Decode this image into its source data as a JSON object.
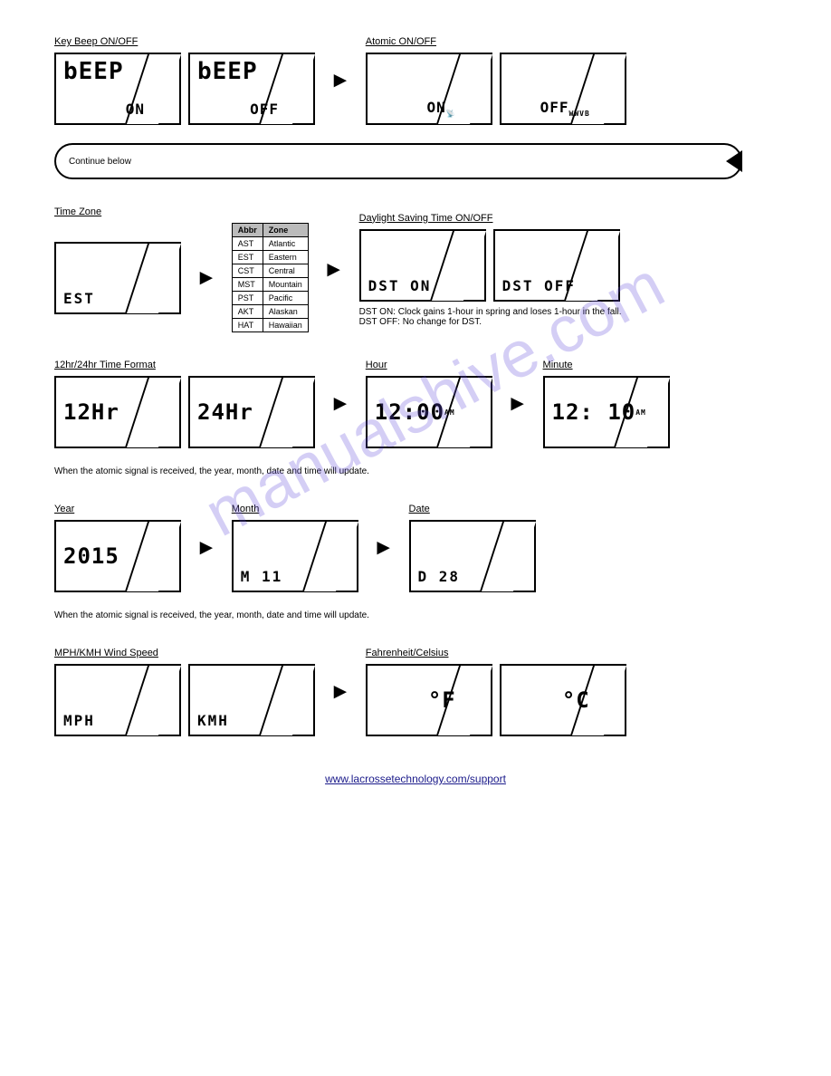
{
  "watermark": "manualshive.com",
  "row1": {
    "beep": {
      "header": "Key Beep ON/OFF",
      "on": {
        "top": "bEEP",
        "bottom": "ON"
      },
      "off": {
        "top": "bEEP",
        "bottom": "OFF"
      }
    },
    "atomic": {
      "header": "Atomic ON/OFF",
      "on": {
        "bottom": "ON",
        "icon": "antenna"
      },
      "off": {
        "bottom": "OFF",
        "sub": "WWVB"
      }
    }
  },
  "continue_label": "Continue below",
  "row2": {
    "tz": {
      "header": "Time Zone",
      "display": "EST",
      "table": {
        "headers": [
          "Abbr",
          "Zone"
        ],
        "rows": [
          [
            "AST",
            "Atlantic"
          ],
          [
            "EST",
            "Eastern"
          ],
          [
            "CST",
            "Central"
          ],
          [
            "MST",
            "Mountain"
          ],
          [
            "PST",
            "Pacific"
          ],
          [
            "AKT",
            "Alaskan"
          ],
          [
            "HAT",
            "Hawaiian"
          ]
        ]
      }
    },
    "dst": {
      "header": "Daylight Saving Time ON/OFF",
      "on": "DST  ON",
      "off": "DST OFF",
      "caption": "DST ON: Clock gains 1-hour in spring and loses 1-hour in the fall. DST OFF: No change for DST."
    }
  },
  "row3": {
    "hrfmt": {
      "header": "12hr/24hr Time Format",
      "h12": "12Hr",
      "h24": "24Hr"
    },
    "hour": {
      "header": "Hour",
      "val": "12:00",
      "ampm": "AM"
    },
    "minute": {
      "header": "Minute",
      "val": "12: 10",
      "ampm": "AM"
    }
  },
  "row3_caption": "When the atomic signal is received, the year, month, date and time will update.",
  "row4": {
    "year": {
      "header": "Year",
      "val": "2015"
    },
    "month": {
      "header": "Month",
      "val": "M   11"
    },
    "date": {
      "header": "Date",
      "val": "D    28"
    }
  },
  "row4_caption": "When the atomic signal is received, the year, month, date and time will update.",
  "row5": {
    "wind": {
      "header": "MPH/KMH Wind Speed",
      "mph": "MPH",
      "kmh": "KMH"
    },
    "temp": {
      "header": "Fahrenheit/Celsius",
      "f": "°F",
      "c": "°C"
    }
  },
  "footer": "www.lacrossetechnology.com/support",
  "colors": {
    "text": "#000000",
    "bg": "#ffffff",
    "table_header": "#bbbbbb",
    "watermark": "rgba(100,80,220,0.28)",
    "link": "#1a1a8a"
  }
}
